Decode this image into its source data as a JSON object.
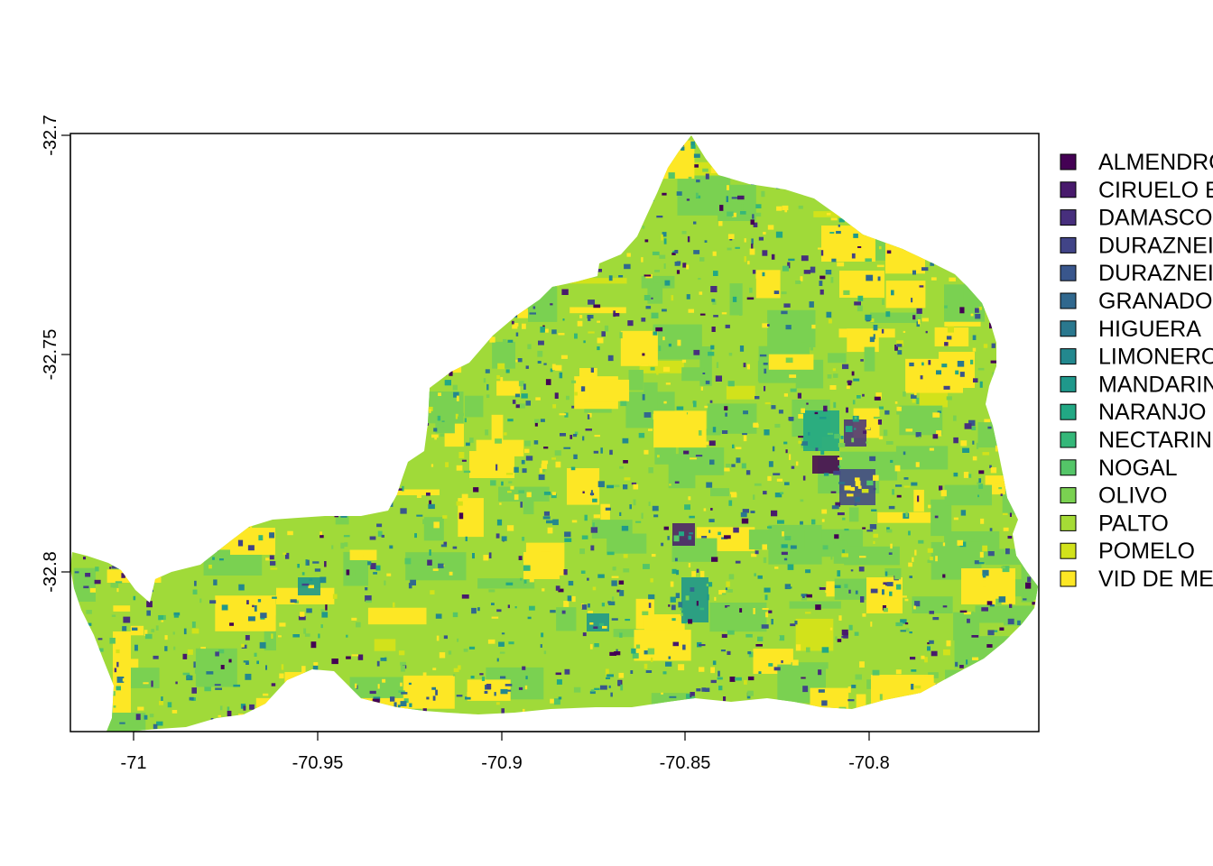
{
  "map": {
    "x_ticks": [
      "-71",
      "-70.95",
      "-70.9",
      "-70.85",
      "-70.8"
    ],
    "y_ticks": [
      "-32.7",
      "-32.75",
      "-32.8"
    ],
    "base_color": "#A0DA39",
    "legend": [
      {
        "label": "ALMENDRO",
        "color": "#440154"
      },
      {
        "label": "CIRUELO E",
        "color": "#481A6C"
      },
      {
        "label": "DAMASCO",
        "color": "#472F7D"
      },
      {
        "label": "DURAZNEI",
        "color": "#414487"
      },
      {
        "label": "DURAZNEI",
        "color": "#39568C"
      },
      {
        "label": "GRANADO",
        "color": "#31688E"
      },
      {
        "label": "HIGUERA",
        "color": "#2A788E"
      },
      {
        "label": "LIMONERO",
        "color": "#23888E"
      },
      {
        "label": "MANDARIN",
        "color": "#1F988B"
      },
      {
        "label": "NARANJO",
        "color": "#22A884"
      },
      {
        "label": "NECTARINO",
        "color": "#35B779"
      },
      {
        "label": "NOGAL",
        "color": "#54C568"
      },
      {
        "label": "OLIVO",
        "color": "#7AD151"
      },
      {
        "label": "PALTO",
        "color": "#A5DB36"
      },
      {
        "label": "POMELO",
        "color": "#D2E21B"
      },
      {
        "label": "VID DE ME",
        "color": "#FDE725"
      }
    ]
  }
}
